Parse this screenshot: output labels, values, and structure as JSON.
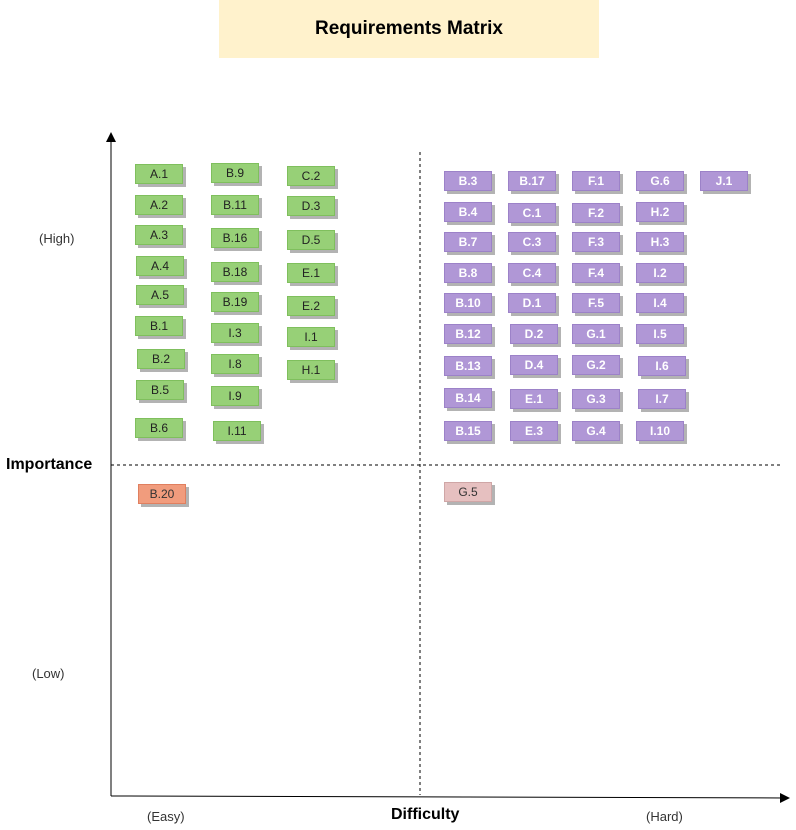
{
  "title": "Requirements Matrix",
  "y_axis": {
    "label": "Importance",
    "high": "(High)",
    "low": "(Low)"
  },
  "x_axis": {
    "label": "Difficulty",
    "easy": "(Easy)",
    "hard": "(Hard)"
  },
  "colors": {
    "green": "#97d077",
    "purple": "#b097d6",
    "orange": "#f19c7d",
    "pink": "#e6c0c0",
    "title_bg": "#fff2cc"
  },
  "quadrants": {
    "easy_high": [
      "A.1",
      "A.2",
      "A.3",
      "A.4",
      "A.5",
      "B.1",
      "B.2",
      "B.5",
      "B.6",
      "B.9",
      "B.11",
      "B.16",
      "B.18",
      "B.19",
      "I.3",
      "I.8",
      "I.9",
      "I.11",
      "C.2",
      "D.3",
      "D.5",
      "E.1",
      "E.2",
      "I.1",
      "H.1"
    ],
    "hard_high": [
      "B.3",
      "B.4",
      "B.7",
      "B.8",
      "B.10",
      "B.12",
      "B.13",
      "B.14",
      "B.15",
      "B.17",
      "C.1",
      "C.3",
      "C.4",
      "D.1",
      "D.2",
      "D.4",
      "E.1",
      "E.3",
      "F.1",
      "F.2",
      "F.3",
      "F.4",
      "F.5",
      "G.1",
      "G.2",
      "G.3",
      "G.4",
      "G.6",
      "H.2",
      "H.3",
      "I.2",
      "I.4",
      "I.5",
      "I.6",
      "I.7",
      "I.10",
      "J.1"
    ],
    "easy_low": [
      "B.20"
    ],
    "hard_low": [
      "G.5"
    ]
  }
}
